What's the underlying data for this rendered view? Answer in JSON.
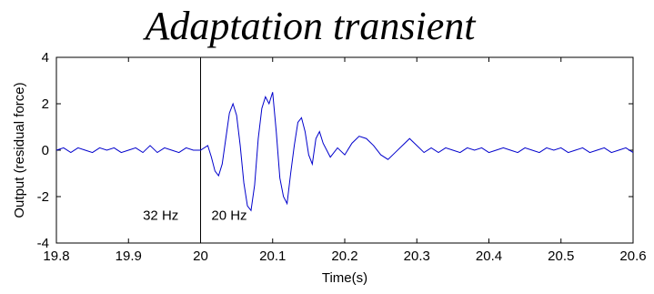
{
  "chart_data": {
    "type": "line",
    "title": "Adaptation transient",
    "xlabel": "Time(s)",
    "ylabel": "Output (residual force)",
    "xlim": [
      19.8,
      20.6
    ],
    "ylim": [
      -4,
      4
    ],
    "xticks": [
      "19.8",
      "19.9",
      "20",
      "20.1",
      "20.2",
      "20.3",
      "20.4",
      "20.5",
      "20.6"
    ],
    "yticks": [
      "4",
      "2",
      "0",
      "-2",
      "-4"
    ],
    "grid": false,
    "line_color": "#0000cc",
    "marker_line": {
      "x": 20.0,
      "color": "#000000"
    },
    "annotations": [
      {
        "text": "32 Hz",
        "x": 19.92,
        "y": -2.8
      },
      {
        "text": "20 Hz",
        "x": 20.015,
        "y": -2.8
      }
    ],
    "series": [
      {
        "values_note": "",
        "x": [
          19.8,
          19.81,
          19.82,
          19.83,
          19.84,
          19.85,
          19.86,
          19.87,
          19.88,
          19.89,
          19.9,
          19.91,
          19.92,
          19.93,
          19.94,
          19.95,
          19.96,
          19.97,
          19.98,
          19.99,
          20.0,
          20.01,
          20.015,
          20.02,
          20.025,
          20.03,
          20.035,
          20.04,
          20.045,
          20.05,
          20.055,
          20.06,
          20.065,
          20.07,
          20.075,
          20.08,
          20.085,
          20.09,
          20.095,
          20.1,
          20.105,
          20.11,
          20.115,
          20.12,
          20.125,
          20.13,
          20.135,
          20.14,
          20.145,
          20.15,
          20.155,
          20.16,
          20.165,
          20.17,
          20.18,
          20.19,
          20.2,
          20.21,
          20.22,
          20.23,
          20.24,
          20.25,
          20.26,
          20.27,
          20.28,
          20.29,
          20.3,
          20.31,
          20.32,
          20.33,
          20.34,
          20.35,
          20.36,
          20.37,
          20.38,
          20.39,
          20.4,
          20.41,
          20.42,
          20.43,
          20.44,
          20.45,
          20.46,
          20.47,
          20.48,
          20.49,
          20.5,
          20.51,
          20.52,
          20.53,
          20.54,
          20.55,
          20.56,
          20.57,
          20.58,
          20.59,
          20.6
        ],
        "values": [
          0.0,
          0.1,
          -0.1,
          0.1,
          0.0,
          -0.1,
          0.1,
          0.0,
          0.1,
          -0.1,
          0.0,
          0.1,
          -0.1,
          0.2,
          -0.1,
          0.1,
          0.0,
          -0.1,
          0.1,
          0.0,
          0.0,
          0.2,
          -0.3,
          -0.9,
          -1.1,
          -0.6,
          0.5,
          1.6,
          2.0,
          1.5,
          0.2,
          -1.4,
          -2.4,
          -2.6,
          -1.5,
          0.5,
          1.8,
          2.3,
          2.0,
          2.5,
          0.8,
          -1.2,
          -2.0,
          -2.3,
          -1.0,
          0.2,
          1.2,
          1.4,
          0.8,
          -0.2,
          -0.6,
          0.5,
          0.8,
          0.3,
          -0.3,
          0.1,
          -0.2,
          0.3,
          0.6,
          0.5,
          0.2,
          -0.2,
          -0.4,
          -0.1,
          0.2,
          0.5,
          0.2,
          -0.1,
          0.1,
          -0.1,
          0.1,
          0.0,
          -0.1,
          0.1,
          0.0,
          0.1,
          -0.1,
          0.0,
          0.1,
          0.0,
          -0.1,
          0.1,
          0.0,
          -0.1,
          0.1,
          0.0,
          0.1,
          -0.1,
          0.0,
          0.1,
          -0.1,
          0.0,
          0.1,
          -0.1,
          0.0,
          0.1,
          -0.1
        ]
      }
    ]
  }
}
